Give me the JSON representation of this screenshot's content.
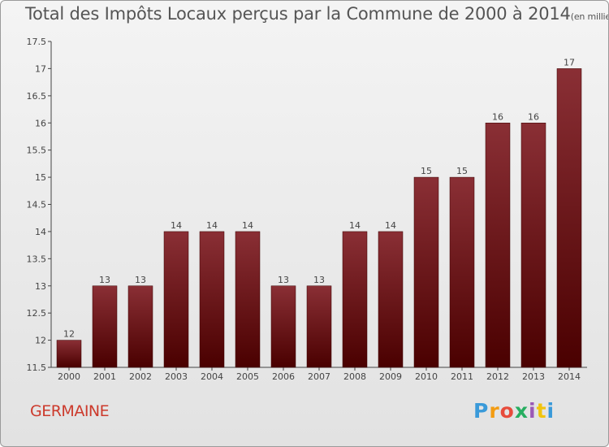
{
  "title": "Total des Impôts Locaux perçus par la Commune de 2000 à 2014",
  "title_unit": "(en milliers d'€)",
  "commune": "GERMAINE",
  "logo": {
    "letters": [
      "P",
      "r",
      "o",
      "x",
      "i",
      "t",
      "i"
    ],
    "colors": [
      "#3a9ad9",
      "#f39c12",
      "#e74c3c",
      "#27ae60",
      "#9b59b6",
      "#f1c40f",
      "#3a9ad9"
    ]
  },
  "colors": {
    "bar_top": "#8a2f35",
    "bar_bottom": "#4a0000",
    "commune_text": "#cc3a2c"
  },
  "chart_data": {
    "type": "bar",
    "categories": [
      "2000",
      "2001",
      "2002",
      "2003",
      "2004",
      "2005",
      "2006",
      "2007",
      "2008",
      "2009",
      "2010",
      "2011",
      "2012",
      "2013",
      "2014"
    ],
    "values": [
      12,
      13,
      13,
      14,
      14,
      14,
      13,
      13,
      14,
      14,
      15,
      15,
      16,
      16,
      17
    ],
    "data_labels": [
      "12",
      "13",
      "13",
      "14",
      "14",
      "14",
      "13",
      "13",
      "14",
      "14",
      "15",
      "15",
      "16",
      "16",
      "17"
    ],
    "yticks": [
      "11.5",
      "12",
      "12.5",
      "13",
      "13.5",
      "14",
      "14.5",
      "15",
      "15.5",
      "16",
      "16.5",
      "17",
      "17.5"
    ],
    "ylim": [
      11.5,
      17.5
    ],
    "grid": false
  }
}
